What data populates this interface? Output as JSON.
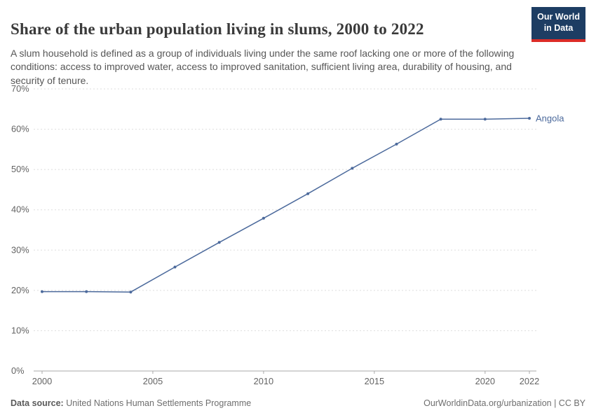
{
  "header": {
    "title": "Share of the urban population living in slums, 2000 to 2022",
    "subtitle": "A slum household is defined as a group of individuals living under the same roof lacking one or more of the following conditions: access to improved water, access to improved sanitation, sufficient living area, durability of housing, and security of tenure.",
    "logo": {
      "line1": "Our World",
      "line2": "in Data"
    }
  },
  "chart_data": {
    "type": "line",
    "title": "Share of the urban population living in slums, 2000 to 2022",
    "x": [
      2000,
      2002,
      2004,
      2006,
      2008,
      2010,
      2012,
      2014,
      2016,
      2018,
      2020,
      2022
    ],
    "series": [
      {
        "name": "Angola",
        "values": [
          19.7,
          19.7,
          19.6,
          25.8,
          31.9,
          37.9,
          44.0,
          50.3,
          56.3,
          62.5,
          62.5,
          62.7
        ],
        "color": "#4C6A9C"
      }
    ],
    "xticks": [
      2000,
      2005,
      2010,
      2015,
      2020,
      2022
    ],
    "yticks": [
      0,
      10,
      20,
      30,
      40,
      50,
      60,
      70
    ],
    "xlim": [
      2000,
      2022
    ],
    "ylim": [
      0,
      70
    ],
    "ytick_suffix": "%",
    "xlabel": "",
    "ylabel": "",
    "grid": true,
    "legend_position": "end-of-line"
  },
  "footer": {
    "source_label": "Data source:",
    "source_text": " United Nations Human Settlements Programme",
    "credit": "OurWorldinData.org/urbanization | CC BY"
  },
  "colors": {
    "line": "#4C6A9C",
    "grid": "#dddddd",
    "axis": "#a8a8a8",
    "tick_text": "#636363",
    "logo_bg": "#1d3d63",
    "logo_accent": "#dc2c27"
  }
}
